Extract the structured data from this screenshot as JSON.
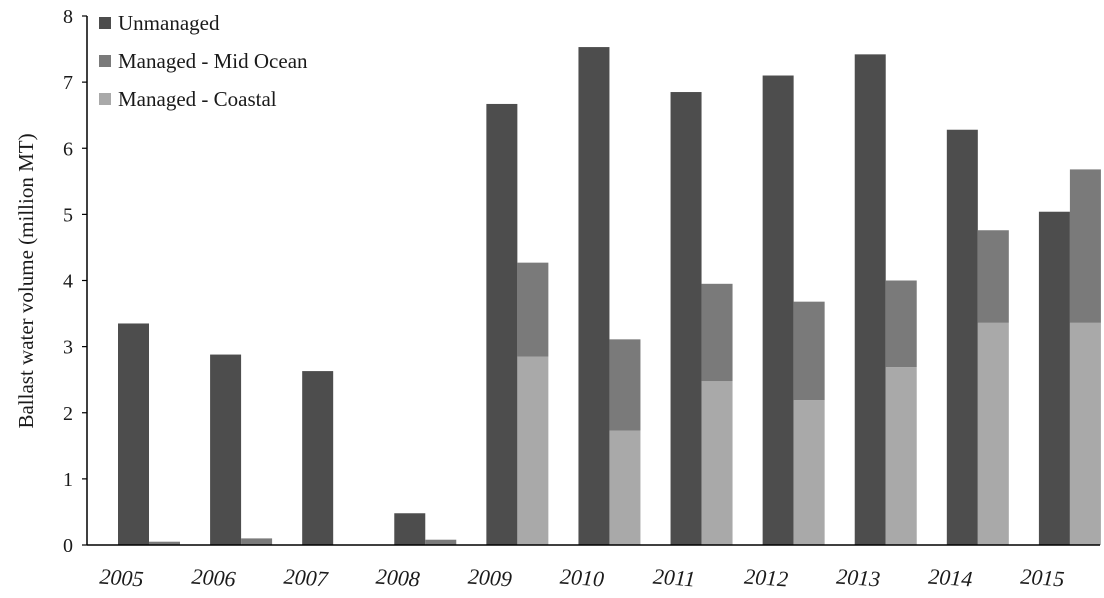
{
  "chart_data": {
    "type": "bar",
    "ylabel": "Ballast  water volume (million MT)",
    "ylim": [
      0,
      8
    ],
    "yticks": [
      "0",
      "1",
      "2",
      "3",
      "4",
      "5",
      "6",
      "7",
      "8"
    ],
    "categories": [
      "2005",
      "2006",
      "2007",
      "2008",
      "2009",
      "2010",
      "2011",
      "2012",
      "2013",
      "2014",
      "2015"
    ],
    "legend_position": "top-left",
    "series": [
      {
        "name": "Unmanaged",
        "values": [
          3.35,
          2.88,
          2.63,
          0.48,
          6.67,
          7.53,
          6.85,
          7.1,
          7.42,
          6.28,
          5.04
        ]
      },
      {
        "name": "Managed - Mid Ocean",
        "values": [
          0.05,
          0.1,
          0.0,
          0.08,
          1.42,
          1.38,
          1.47,
          1.49,
          1.31,
          1.4,
          2.32
        ]
      },
      {
        "name": "Managed - Coastal",
        "values": [
          0.0,
          0.0,
          0.0,
          0.0,
          2.85,
          1.73,
          2.48,
          2.19,
          2.69,
          3.36,
          3.36
        ]
      }
    ],
    "colors": {
      "Unmanaged": "#4d4d4d",
      "Managed - Mid Ocean": "#7a7a7a",
      "Managed - Coastal": "#a9a9a9"
    }
  }
}
